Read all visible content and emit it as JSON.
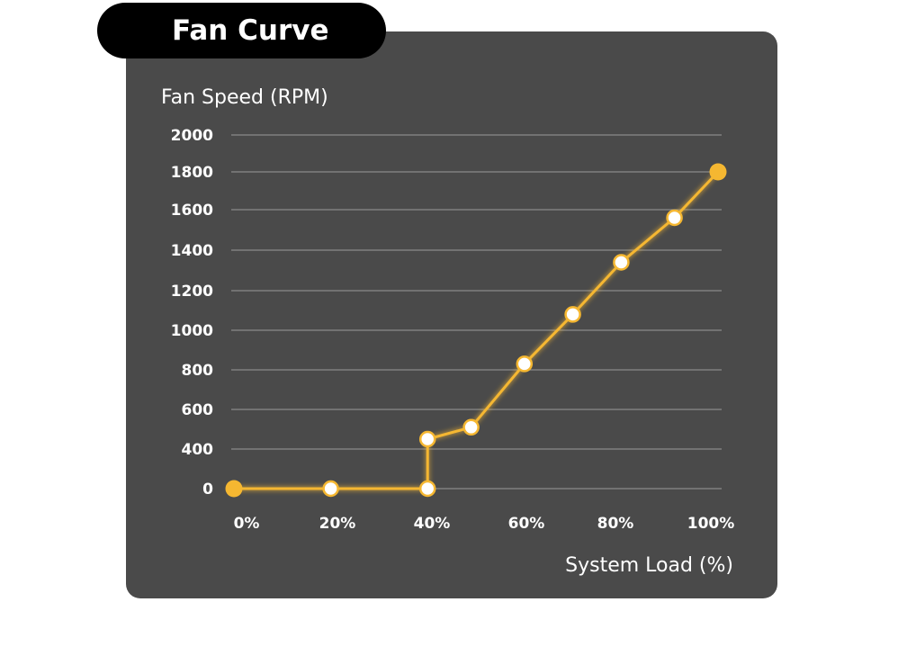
{
  "chart_data": {
    "type": "line",
    "title": "Fan Curve",
    "ylabel": "Fan Speed (RPM)",
    "xlabel": "System Load (%)",
    "x_ticks": [
      "0%",
      "20%",
      "40%",
      "60%",
      "80%",
      "100%"
    ],
    "y_ticks": [
      "2000",
      "1800",
      "1600",
      "1400",
      "1200",
      "1000",
      "800",
      "600",
      "400",
      "0"
    ],
    "xlim": [
      0,
      100
    ],
    "grid": true,
    "series": [
      {
        "color": "#f5b731",
        "points": [
          {
            "x": 0,
            "y": 0,
            "endpoint": true
          },
          {
            "x": 20,
            "y": 0
          },
          {
            "x": 40,
            "y": 0
          },
          {
            "x": 40,
            "y": 450
          },
          {
            "x": 49,
            "y": 510
          },
          {
            "x": 60,
            "y": 830
          },
          {
            "x": 70,
            "y": 1080
          },
          {
            "x": 80,
            "y": 1340
          },
          {
            "x": 91,
            "y": 1560
          },
          {
            "x": 100,
            "y": 1800,
            "endpoint": true
          }
        ]
      }
    ]
  },
  "colors": {
    "panel": "#4a4a4a",
    "title_pill": "#000000",
    "curve": "#f5b731",
    "gridline": "#8a8a8a",
    "text": "#ffffff"
  }
}
